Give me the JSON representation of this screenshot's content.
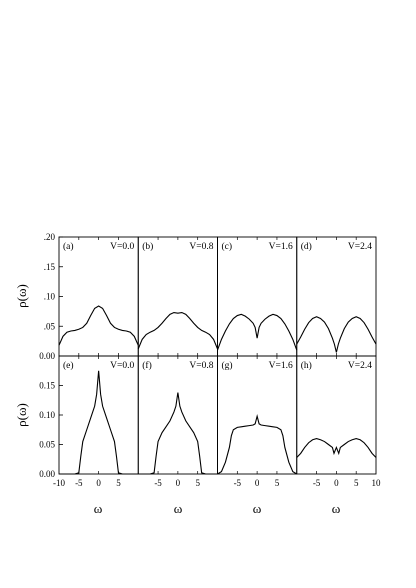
{
  "chart_data": {
    "type": "line",
    "layout": "2 rows x 4 columns of panels, shared axes",
    "xlabel": "ω",
    "ylabel": "ρ(ω)",
    "xlim": [
      -10,
      10
    ],
    "x_ticks": [
      "-10",
      "-5",
      "0",
      "5",
      "10"
    ],
    "row_x_tick_labels": [
      "-5",
      "0",
      "5"
    ],
    "rows": [
      {
        "ylim": [
          0,
          0.2
        ],
        "y_ticks": [
          {
            "value": 0.0,
            "label": "0.00"
          },
          {
            "value": 0.05,
            "label": ".05"
          },
          {
            "value": 0.1,
            "label": ".10"
          },
          {
            "value": 0.15,
            "label": ".15"
          },
          {
            "value": 0.2,
            "label": ".20"
          }
        ]
      },
      {
        "ylim": [
          0,
          0.2
        ],
        "y_ticks": [
          {
            "value": 0.0,
            "label": "0.00"
          },
          {
            "value": 0.05,
            "label": "0.05"
          },
          {
            "value": 0.1,
            "label": "0.10"
          },
          {
            "value": 0.15,
            "label": "0.15"
          }
        ]
      }
    ],
    "panels": [
      {
        "label": "(a)",
        "annotation": "V=0.0",
        "row": 0,
        "col": 0,
        "x": [
          -10,
          -9,
          -8,
          -7,
          -6,
          -5,
          -4,
          -3,
          -2,
          -1,
          0,
          1,
          2,
          3,
          4,
          5,
          6,
          7,
          8,
          9,
          10
        ],
        "y": [
          0.018,
          0.033,
          0.04,
          0.042,
          0.043,
          0.045,
          0.048,
          0.055,
          0.068,
          0.08,
          0.084,
          0.08,
          0.068,
          0.055,
          0.048,
          0.045,
          0.043,
          0.042,
          0.04,
          0.033,
          0.018
        ]
      },
      {
        "label": "(b)",
        "annotation": "V=0.8",
        "row": 0,
        "col": 1,
        "x": [
          -10,
          -9,
          -8,
          -7,
          -6,
          -5,
          -4,
          -3,
          -2,
          -1,
          0,
          1,
          2,
          3,
          4,
          5,
          6,
          7,
          8,
          9,
          10
        ],
        "y": [
          0.012,
          0.028,
          0.036,
          0.04,
          0.043,
          0.048,
          0.055,
          0.063,
          0.07,
          0.073,
          0.072,
          0.073,
          0.07,
          0.063,
          0.055,
          0.048,
          0.043,
          0.04,
          0.036,
          0.028,
          0.012
        ]
      },
      {
        "label": "(c)",
        "annotation": "V=1.6",
        "row": 0,
        "col": 2,
        "x": [
          -10,
          -9,
          -8,
          -7,
          -6,
          -5,
          -4,
          -3,
          -2,
          -1,
          -0.5,
          0,
          0.5,
          1,
          2,
          3,
          4,
          5,
          6,
          7,
          8,
          9,
          10
        ],
        "y": [
          0.01,
          0.028,
          0.042,
          0.054,
          0.063,
          0.068,
          0.07,
          0.067,
          0.062,
          0.055,
          0.048,
          0.03,
          0.048,
          0.055,
          0.062,
          0.067,
          0.07,
          0.068,
          0.063,
          0.054,
          0.042,
          0.028,
          0.01
        ]
      },
      {
        "label": "(d)",
        "annotation": "V=2.4",
        "row": 0,
        "col": 3,
        "x": [
          -10,
          -9,
          -8,
          -7,
          -6,
          -5,
          -4,
          -3,
          -2,
          -1,
          -0.5,
          0,
          0.5,
          1,
          2,
          3,
          4,
          5,
          6,
          7,
          8,
          9,
          10
        ],
        "y": [
          0.02,
          0.032,
          0.045,
          0.056,
          0.063,
          0.066,
          0.063,
          0.057,
          0.046,
          0.03,
          0.02,
          0.006,
          0.02,
          0.03,
          0.046,
          0.057,
          0.063,
          0.066,
          0.063,
          0.056,
          0.045,
          0.032,
          0.02
        ]
      },
      {
        "label": "(e)",
        "annotation": "V=0.0",
        "row": 1,
        "col": 0,
        "x": [
          -10,
          -6,
          -5,
          -4.5,
          -4,
          -3,
          -2,
          -1,
          -0.5,
          0,
          0.5,
          1,
          2,
          3,
          4,
          4.5,
          5,
          6,
          10
        ],
        "y": [
          0.0,
          0.0,
          0.002,
          0.03,
          0.055,
          0.075,
          0.095,
          0.115,
          0.135,
          0.175,
          0.135,
          0.115,
          0.095,
          0.075,
          0.055,
          0.03,
          0.002,
          0.0,
          0.0
        ]
      },
      {
        "label": "(f)",
        "annotation": "V=0.8",
        "row": 1,
        "col": 1,
        "x": [
          -10,
          -7,
          -6,
          -5.5,
          -5,
          -4,
          -3,
          -2,
          -1,
          -0.5,
          0,
          0.5,
          1,
          2,
          3,
          4,
          5,
          5.5,
          6,
          7,
          10
        ],
        "y": [
          0.0,
          0.0,
          0.002,
          0.03,
          0.055,
          0.07,
          0.08,
          0.09,
          0.105,
          0.115,
          0.138,
          0.115,
          0.105,
          0.09,
          0.08,
          0.07,
          0.055,
          0.03,
          0.002,
          0.0,
          0.0
        ]
      },
      {
        "label": "(g)",
        "annotation": "V=1.6",
        "row": 1,
        "col": 2,
        "x": [
          -10,
          -9,
          -8,
          -7,
          -6.5,
          -6,
          -5,
          -4,
          -3,
          -2,
          -1,
          -0.5,
          0,
          0.5,
          1,
          2,
          3,
          4,
          5,
          6,
          6.5,
          7,
          8,
          9,
          10
        ],
        "y": [
          0.0,
          0.004,
          0.02,
          0.045,
          0.065,
          0.075,
          0.079,
          0.08,
          0.081,
          0.082,
          0.083,
          0.085,
          0.098,
          0.085,
          0.083,
          0.082,
          0.081,
          0.08,
          0.079,
          0.075,
          0.065,
          0.045,
          0.02,
          0.004,
          0.0
        ]
      },
      {
        "label": "(h)",
        "annotation": "V=2.4",
        "row": 1,
        "col": 3,
        "x": [
          -10,
          -9,
          -8,
          -7,
          -6,
          -5,
          -4,
          -3,
          -2,
          -1,
          -0.6,
          0,
          0.6,
          1,
          2,
          3,
          4,
          5,
          6,
          7,
          8,
          9,
          10
        ],
        "y": [
          0.028,
          0.035,
          0.045,
          0.053,
          0.058,
          0.06,
          0.058,
          0.055,
          0.05,
          0.045,
          0.035,
          0.045,
          0.035,
          0.045,
          0.05,
          0.055,
          0.058,
          0.06,
          0.058,
          0.053,
          0.045,
          0.035,
          0.028
        ]
      }
    ]
  }
}
